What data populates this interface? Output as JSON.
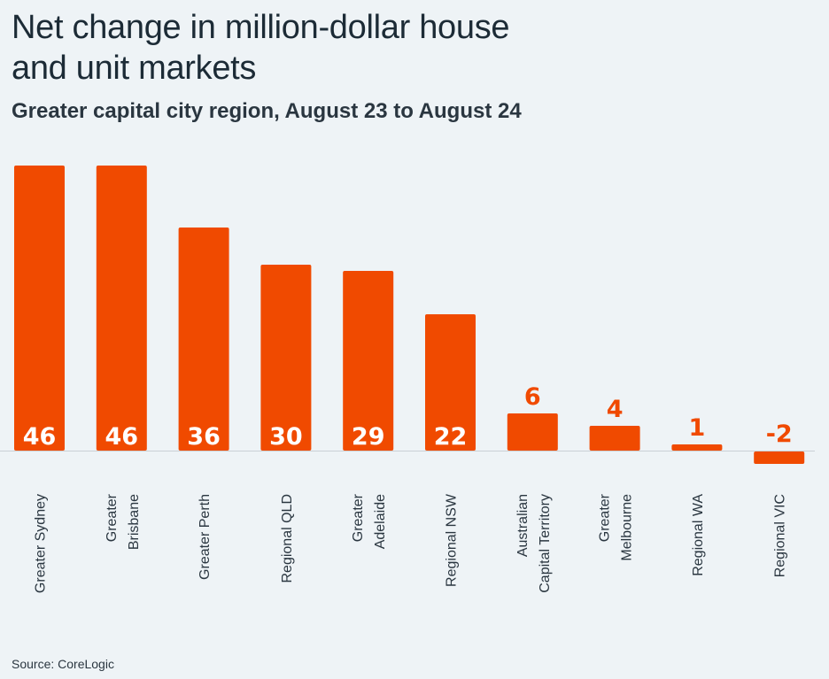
{
  "chart_data": {
    "type": "bar",
    "title": "Net change in million-dollar house and unit markets",
    "subtitle": "Greater capital city region, August 23 to August 24",
    "source": "Source: CoreLogic",
    "categories": [
      [
        "Greater Sydney"
      ],
      [
        "Greater",
        "Brisbane"
      ],
      [
        "Greater Perth"
      ],
      [
        "Regional QLD"
      ],
      [
        "Greater",
        "Adelaide"
      ],
      [
        "Regional NSW"
      ],
      [
        "Australian",
        "Capital Territory"
      ],
      [
        "Greater",
        "Melbourne"
      ],
      [
        "Regional WA"
      ],
      [
        "Regional VIC"
      ]
    ],
    "values": [
      46,
      46,
      36,
      30,
      29,
      22,
      6,
      4,
      1,
      -2
    ],
    "value_labels": [
      "46",
      "46",
      "36",
      "30",
      "29",
      "22",
      "6",
      "4",
      "1",
      "-2"
    ],
    "xlabel": "",
    "ylabel": "",
    "ylim": [
      -2,
      46
    ],
    "grid": false,
    "legend": "none",
    "colors": {
      "bar": "#f04a00",
      "label_inside": "#ffffff",
      "label_outside": "#f04a00"
    }
  }
}
